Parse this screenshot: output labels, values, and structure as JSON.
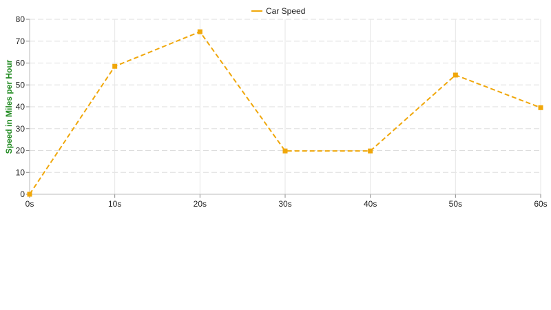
{
  "chart_data": {
    "type": "line",
    "x": [
      "0s",
      "10s",
      "20s",
      "30s",
      "40s",
      "50s",
      "60s"
    ],
    "series": [
      {
        "name": "Car Speed",
        "values": [
          0,
          58.5,
          74.3,
          19.8,
          19.8,
          54.5,
          39.6
        ],
        "color": "#f0a70a",
        "line_style": "dashed",
        "marker": "square"
      }
    ],
    "xlabel": "",
    "ylabel": "Speed in Miles per Hour",
    "ylabel_color": "#228b22",
    "ylim": [
      0,
      80
    ],
    "yticks": [
      0,
      10,
      20,
      30,
      40,
      50,
      60,
      70,
      80
    ],
    "grid": true,
    "legend_position": "top-center"
  }
}
